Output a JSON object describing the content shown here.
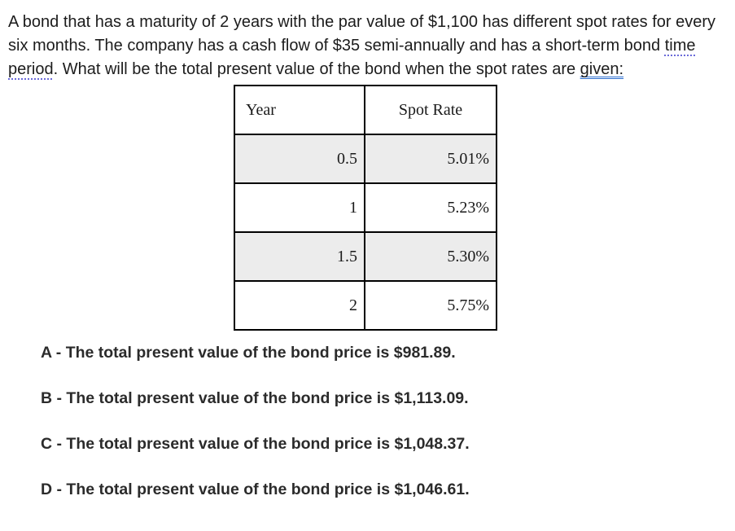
{
  "question": {
    "part1": "A bond that has a maturity of 2 years with the par value of $1,100 has different spot rates for every six months. The company has a cash flow of $35 semi-annually and has a short-term bond ",
    "flagged_phrase": "time period",
    "part2": ". What will be the total present value of the bond when the spot rates are ",
    "flagged_word": "given:"
  },
  "table": {
    "headers": [
      "Year",
      "Spot Rate"
    ],
    "rows": [
      {
        "year": "0.5",
        "rate": "5.01%"
      },
      {
        "year": "1",
        "rate": "5.23%"
      },
      {
        "year": "1.5",
        "rate": "5.30%"
      },
      {
        "year": "2",
        "rate": "5.75%"
      }
    ]
  },
  "options": [
    "A - The total present value of the bond price is $981.89.",
    "B - The total present value of the bond price is $1,113.09.",
    "C - The total present value of the bond price is $1,048.37.",
    "D - The total present value of the bond price is $1,046.61."
  ],
  "colors": {
    "shaded_row": "#ececec",
    "table_border": "#000000",
    "grammar_dotted_underline": "#6a6ada",
    "grammar_double_underline": "#2e6fd0",
    "question_text": "#1c1c1c",
    "option_text": "#2b2b2b"
  }
}
